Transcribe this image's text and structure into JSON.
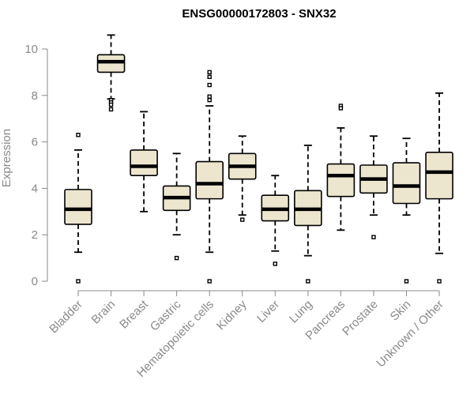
{
  "chart_data": {
    "type": "boxplot",
    "title": "ENSG00000172803 - SNX32",
    "xlabel": "",
    "ylabel": "Expression",
    "ylim": [
      0,
      10.5
    ],
    "yticks": [
      0,
      2,
      4,
      6,
      8,
      10
    ],
    "categories": [
      "Bladder",
      "Brain",
      "Breast",
      "Gastric",
      "Hematopoietic cells",
      "Kidney",
      "Liver",
      "Lung",
      "Pancreas",
      "Prostate",
      "Skin",
      "Unknown / Other"
    ],
    "boxes": [
      {
        "name": "Bladder",
        "min": 1.25,
        "q1": 2.45,
        "median": 3.1,
        "q3": 3.95,
        "max": 5.65,
        "outliers": [
          6.3,
          0.0
        ]
      },
      {
        "name": "Brain",
        "min": 7.85,
        "q1": 9.0,
        "median": 9.45,
        "q3": 9.75,
        "max": 10.6,
        "outliers": [
          7.8,
          7.7,
          7.6,
          7.4
        ]
      },
      {
        "name": "Breast",
        "min": 3.0,
        "q1": 4.55,
        "median": 4.95,
        "q3": 5.65,
        "max": 7.3,
        "outliers": []
      },
      {
        "name": "Gastric",
        "min": 2.0,
        "q1": 3.05,
        "median": 3.6,
        "q3": 4.1,
        "max": 5.5,
        "outliers": [
          1.0
        ]
      },
      {
        "name": "Hematopoietic cells",
        "min": 1.25,
        "q1": 3.55,
        "median": 4.2,
        "q3": 5.15,
        "max": 7.55,
        "outliers": [
          9.0,
          8.8,
          8.45,
          7.95,
          7.8,
          0.0
        ]
      },
      {
        "name": "Kidney",
        "min": 2.85,
        "q1": 4.4,
        "median": 4.95,
        "q3": 5.5,
        "max": 6.25,
        "outliers": [
          2.65
        ]
      },
      {
        "name": "Liver",
        "min": 1.3,
        "q1": 2.6,
        "median": 3.1,
        "q3": 3.7,
        "max": 4.55,
        "outliers": [
          0.75
        ]
      },
      {
        "name": "Lung",
        "min": 1.1,
        "q1": 2.4,
        "median": 3.1,
        "q3": 3.9,
        "max": 5.85,
        "outliers": [
          0.0
        ]
      },
      {
        "name": "Pancreas",
        "min": 2.2,
        "q1": 3.65,
        "median": 4.55,
        "q3": 5.05,
        "max": 6.6,
        "outliers": [
          7.55,
          7.45
        ]
      },
      {
        "name": "Prostate",
        "min": 2.85,
        "q1": 3.8,
        "median": 4.4,
        "q3": 5.0,
        "max": 6.25,
        "outliers": [
          1.9
        ]
      },
      {
        "name": "Skin",
        "min": 2.85,
        "q1": 3.35,
        "median": 4.1,
        "q3": 5.1,
        "max": 6.15,
        "outliers": [
          0.0
        ]
      },
      {
        "name": "Unknown / Other",
        "min": 1.2,
        "q1": 3.55,
        "median": 4.7,
        "q3": 5.55,
        "max": 8.1,
        "outliers": [
          0.0
        ]
      }
    ],
    "colors": {
      "box_fill": "#ede6cf",
      "stroke": "#000000",
      "axis": "#8a8a8a"
    }
  }
}
